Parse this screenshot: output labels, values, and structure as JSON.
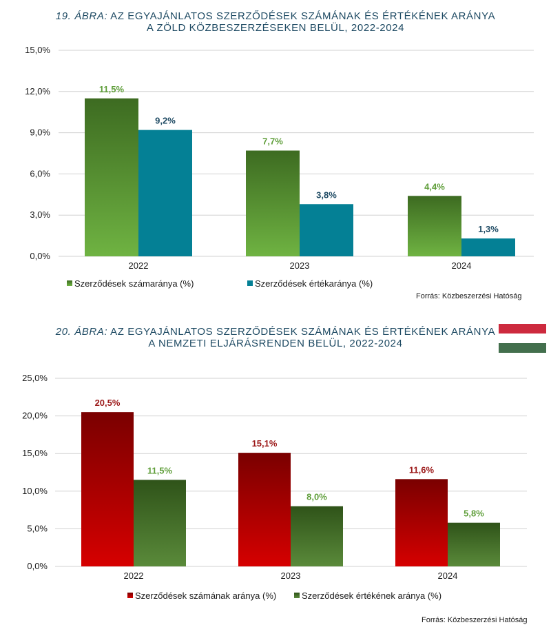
{
  "colors": {
    "green_top": "#3d6b21",
    "green_bottom": "#6fb342",
    "teal": "#048095",
    "red_top": "#7a0000",
    "red_bottom": "#d60000",
    "dark_green_top": "#2f5319",
    "dark_green_bottom": "#5a8a3a",
    "green_label": "#5f9e3a",
    "teal_label": "#1e4a63",
    "red_label": "#9c1a1a",
    "grid": "#d0d0d0",
    "flag_red": "#cd2a3e",
    "flag_white": "#ffffff",
    "flag_green": "#436f4d"
  },
  "chart1": {
    "title_num": "19. ÁBRA:",
    "title_line1_rest": " AZ EGYAJÁNLATOS SZERZŐDÉSEK SZÁMÁNAK ÉS ÉRTÉKÉNEK ARÁNYA",
    "title_line2": "A ZÖLD KÖZBESZERZÉSEKEN BELÜL, 2022-2024",
    "source": "Forrás: Közbeszerzési Hatóság"
  },
  "chart2": {
    "title_num": "20. ÁBRA:",
    "title_line1_rest": " AZ EGYAJÁNLATOS SZERZŐDÉSEK SZÁMÁNAK ÉS ÉRTÉKÉNEK ARÁNYA",
    "title_line2": "A NEMZETI ELJÁRÁSRENDEN BELÜL, 2022-2024",
    "source": "Forrás: Közbeszerzési Hatóság"
  },
  "chart_data": [
    {
      "type": "bar",
      "title": "19. ÁBRA: AZ EGYAJÁNLATOS SZERZŐDÉSEK SZÁMÁNAK ÉS ÉRTÉKÉNEK ARÁNYA A ZÖLD KÖZBESZERZÉSEKEN BELÜL, 2022-2024",
      "categories": [
        "2022",
        "2023",
        "2024"
      ],
      "series": [
        {
          "name": "Szerződések számaránya (%)",
          "values": [
            11.5,
            7.7,
            4.4
          ],
          "labels": [
            "11,5%",
            "7,7%",
            "4,4%"
          ]
        },
        {
          "name": "Szerződések értékaránya (%)",
          "values": [
            9.2,
            3.8,
            1.3
          ],
          "labels": [
            "9,2%",
            "3,8%",
            "1,3%"
          ]
        }
      ],
      "ylim": [
        0,
        15
      ],
      "yticks": [
        0,
        3,
        6,
        9,
        12,
        15
      ],
      "ytick_labels": [
        "0,0%",
        "3,0%",
        "6,0%",
        "9,0%",
        "12,0%",
        "15,0%"
      ],
      "xlabel": "",
      "ylabel": "",
      "grid": true,
      "legend": "bottom-left"
    },
    {
      "type": "bar",
      "title": "20. ÁBRA: AZ EGYAJÁNLATOS SZERZŐDÉSEK SZÁMÁNAK ÉS ÉRTÉKÉNEK ARÁNYA A NEMZETI ELJÁRÁSRENDEN BELÜL, 2022-2024",
      "categories": [
        "2022",
        "2023",
        "2024"
      ],
      "series": [
        {
          "name": "Szerződések számának aránya (%)",
          "values": [
            20.5,
            15.1,
            11.6
          ],
          "labels": [
            "20,5%",
            "15,1%",
            "11,6%"
          ]
        },
        {
          "name": "Szerződések értékének aránya (%)",
          "values": [
            11.5,
            8.0,
            5.8
          ],
          "labels": [
            "11,5%",
            "8,0%",
            "5,8%"
          ]
        }
      ],
      "ylim": [
        0,
        25
      ],
      "yticks": [
        0,
        5,
        10,
        15,
        20,
        25
      ],
      "ytick_labels": [
        "0,0%",
        "5,0%",
        "10,0%",
        "15,0%",
        "20,0%",
        "25,0%"
      ],
      "xlabel": "",
      "ylabel": "",
      "grid": true,
      "legend": "bottom-center"
    }
  ]
}
